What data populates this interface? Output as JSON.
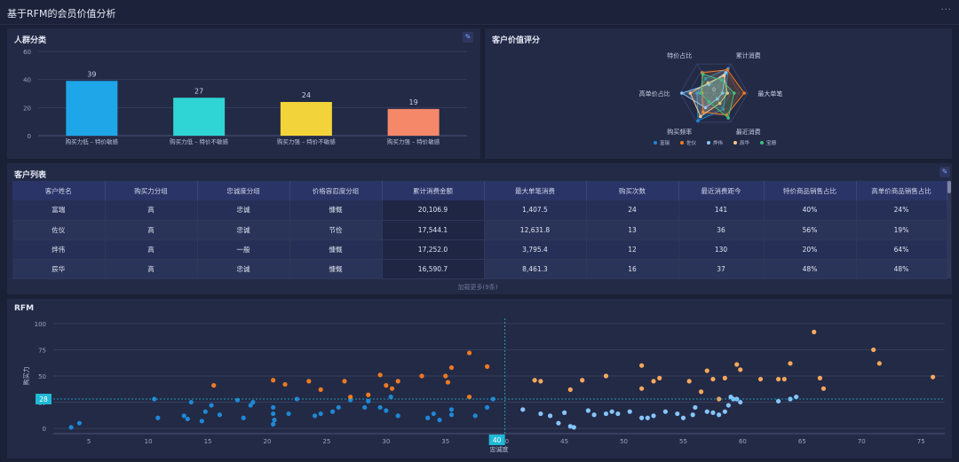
{
  "header": {
    "title": "基于RFM的会员价值分析",
    "more": "···"
  },
  "segment_panel": {
    "title": "人群分类",
    "icon": "link-icon",
    "chart_data": {
      "type": "bar",
      "categories": [
        "购买力低 – 特价敏感",
        "购买力低 – 特价不敏感",
        "购买力强 – 特价不敏感",
        "购买力强 – 特价敏感"
      ],
      "values": [
        39,
        27,
        24,
        19
      ],
      "ylim": [
        0,
        60
      ],
      "yticks": [
        0,
        20,
        40,
        60
      ],
      "colors": [
        "#1ea6e8",
        "#2fd4d4",
        "#f2d33a",
        "#f58868"
      ],
      "grid": true
    }
  },
  "radar_panel": {
    "title": "客户价值评分",
    "chart_data": {
      "type": "radar",
      "axes": [
        "累计消费",
        "最大单笔",
        "最近消费",
        "购买频率",
        "高单价占比",
        "特价占比"
      ],
      "center_label": "0",
      "series": [
        {
          "name": "富瑞",
          "color": "#1e88d6",
          "values": [
            0.85,
            0.35,
            0.55,
            0.95,
            0.5,
            0.5
          ]
        },
        {
          "name": "佐仪",
          "color": "#f07a22",
          "values": [
            0.8,
            0.9,
            0.75,
            0.65,
            0.35,
            0.7
          ]
        },
        {
          "name": "烨伟",
          "color": "#86c5ff",
          "values": [
            0.7,
            0.25,
            0.2,
            0.5,
            0.95,
            0.3
          ]
        },
        {
          "name": "辰华",
          "color": "#f7c98c",
          "values": [
            0.6,
            0.4,
            0.35,
            0.8,
            0.7,
            0.35
          ]
        },
        {
          "name": "宝珊",
          "color": "#3fbf7f",
          "values": [
            0.45,
            0.6,
            0.85,
            0.3,
            0.4,
            0.65
          ]
        }
      ],
      "legend": "bottom"
    }
  },
  "table_panel": {
    "title": "客户列表",
    "icon": "link-icon",
    "columns": [
      "客户姓名",
      "购买力分组",
      "忠诚度分组",
      "价格容忍度分组",
      "累计消费金额",
      "最大单笔消费",
      "购买次数",
      "最近消费距今",
      "特价商品销售占比",
      "高单价商品销售占比"
    ],
    "rows": [
      [
        "富瑞",
        "高",
        "忠诚",
        "慷慨",
        "20,106.9",
        "1,407.5",
        "24",
        "141",
        "40%",
        "24%"
      ],
      [
        "佐仪",
        "高",
        "忠诚",
        "节俭",
        "17,544.1",
        "12,631.8",
        "13",
        "36",
        "56%",
        "19%"
      ],
      [
        "烨伟",
        "高",
        "一般",
        "慷慨",
        "17,252.0",
        "3,795.4",
        "12",
        "130",
        "20%",
        "64%"
      ],
      [
        "辰华",
        "高",
        "忠诚",
        "慷慨",
        "16,590.7",
        "8,461.3",
        "16",
        "37",
        "48%",
        "48%"
      ]
    ],
    "load_more": "加载更多(9条)"
  },
  "rfm_panel": {
    "title": "RFM",
    "chart_data": {
      "type": "scatter",
      "xlabel": "忠诚度",
      "ylabel": "购买力",
      "xlim": [
        2,
        77
      ],
      "ylim": [
        -5,
        105
      ],
      "xticks": [
        5,
        10,
        15,
        20,
        25,
        30,
        35,
        40,
        45,
        50,
        55,
        60,
        65,
        70,
        75
      ],
      "yticks": [
        0,
        25,
        50,
        75,
        100
      ],
      "x_marker": "40",
      "y_marker": "28",
      "grid": true,
      "series": [
        {
          "color": "#1e88d6",
          "points": [
            [
              3.5,
              1
            ],
            [
              4.2,
              5
            ],
            [
              10.5,
              28
            ],
            [
              10.8,
              10
            ],
            [
              13,
              12
            ],
            [
              13.3,
              9
            ],
            [
              13.6,
              25
            ],
            [
              14.5,
              7
            ],
            [
              14.8,
              16
            ],
            [
              15.3,
              22
            ],
            [
              16,
              13
            ],
            [
              17.5,
              27
            ],
            [
              18,
              10
            ],
            [
              18.6,
              22
            ],
            [
              18.8,
              25
            ],
            [
              20.5,
              14
            ],
            [
              20.5,
              20
            ],
            [
              20.6,
              8
            ],
            [
              20.5,
              4
            ],
            [
              21.8,
              14
            ],
            [
              22.5,
              28
            ],
            [
              24,
              12
            ],
            [
              24.5,
              14
            ],
            [
              25.5,
              16
            ],
            [
              26,
              20
            ],
            [
              27,
              27
            ],
            [
              28.2,
              20
            ],
            [
              28.5,
              26
            ],
            [
              29.5,
              20
            ],
            [
              30,
              17
            ],
            [
              30.4,
              30
            ],
            [
              31,
              12
            ],
            [
              33.5,
              10
            ],
            [
              34,
              14
            ],
            [
              34.5,
              8
            ],
            [
              35.5,
              13
            ],
            [
              35.5,
              18
            ],
            [
              37.5,
              12
            ],
            [
              38.5,
              20
            ],
            [
              39,
              28
            ]
          ]
        },
        {
          "color": "#f07a22",
          "points": [
            [
              15.5,
              41
            ],
            [
              20.5,
              46
            ],
            [
              21.5,
              42
            ],
            [
              23.5,
              45
            ],
            [
              24.5,
              37
            ],
            [
              26.5,
              45
            ],
            [
              27,
              30
            ],
            [
              28.5,
              32
            ],
            [
              29.5,
              51
            ],
            [
              30,
              41
            ],
            [
              30.5,
              38
            ],
            [
              31,
              45
            ],
            [
              33,
              50
            ],
            [
              35,
              50
            ],
            [
              35.2,
              44
            ],
            [
              35.5,
              58
            ],
            [
              37,
              72
            ],
            [
              37,
              30
            ],
            [
              38.5,
              59
            ]
          ]
        },
        {
          "color": "#86c5ff",
          "points": [
            [
              41.5,
              18
            ],
            [
              43,
              14
            ],
            [
              43.8,
              12
            ],
            [
              44.5,
              5
            ],
            [
              45,
              15
            ],
            [
              45.5,
              2
            ],
            [
              45.8,
              1
            ],
            [
              47,
              17
            ],
            [
              47.5,
              13
            ],
            [
              48.5,
              14
            ],
            [
              49,
              16
            ],
            [
              49.5,
              14
            ],
            [
              50.5,
              16
            ],
            [
              51.5,
              10
            ],
            [
              52,
              10
            ],
            [
              52.5,
              12
            ],
            [
              53.5,
              16
            ],
            [
              54.5,
              14
            ],
            [
              55,
              10
            ],
            [
              55.8,
              13
            ],
            [
              56,
              20
            ],
            [
              57,
              16
            ],
            [
              57.5,
              15
            ],
            [
              58,
              13
            ],
            [
              58.5,
              16
            ],
            [
              58.8,
              22
            ],
            [
              59,
              30
            ],
            [
              59.2,
              28
            ],
            [
              59.5,
              28
            ],
            [
              59.8,
              25
            ],
            [
              63,
              26
            ],
            [
              64,
              28
            ],
            [
              64.5,
              30
            ]
          ]
        },
        {
          "color": "#f7a85c",
          "points": [
            [
              42.5,
              46
            ],
            [
              43,
              45
            ],
            [
              45.5,
              37
            ],
            [
              46.5,
              46
            ],
            [
              48.5,
              50
            ],
            [
              51.5,
              60
            ],
            [
              51.5,
              38
            ],
            [
              52.5,
              45
            ],
            [
              53,
              48
            ],
            [
              55.5,
              45
            ],
            [
              56.5,
              35
            ],
            [
              57,
              55
            ],
            [
              57.5,
              47
            ],
            [
              58.5,
              48
            ],
            [
              59.5,
              61
            ],
            [
              59.8,
              56
            ],
            [
              61.5,
              47
            ],
            [
              63,
              47
            ],
            [
              63.5,
              47
            ],
            [
              64,
              62
            ],
            [
              66,
              92
            ],
            [
              66.5,
              48
            ],
            [
              66.8,
              38
            ],
            [
              71,
              75
            ],
            [
              71.5,
              62
            ],
            [
              76,
              49
            ],
            [
              58,
              28
            ]
          ]
        }
      ]
    }
  }
}
